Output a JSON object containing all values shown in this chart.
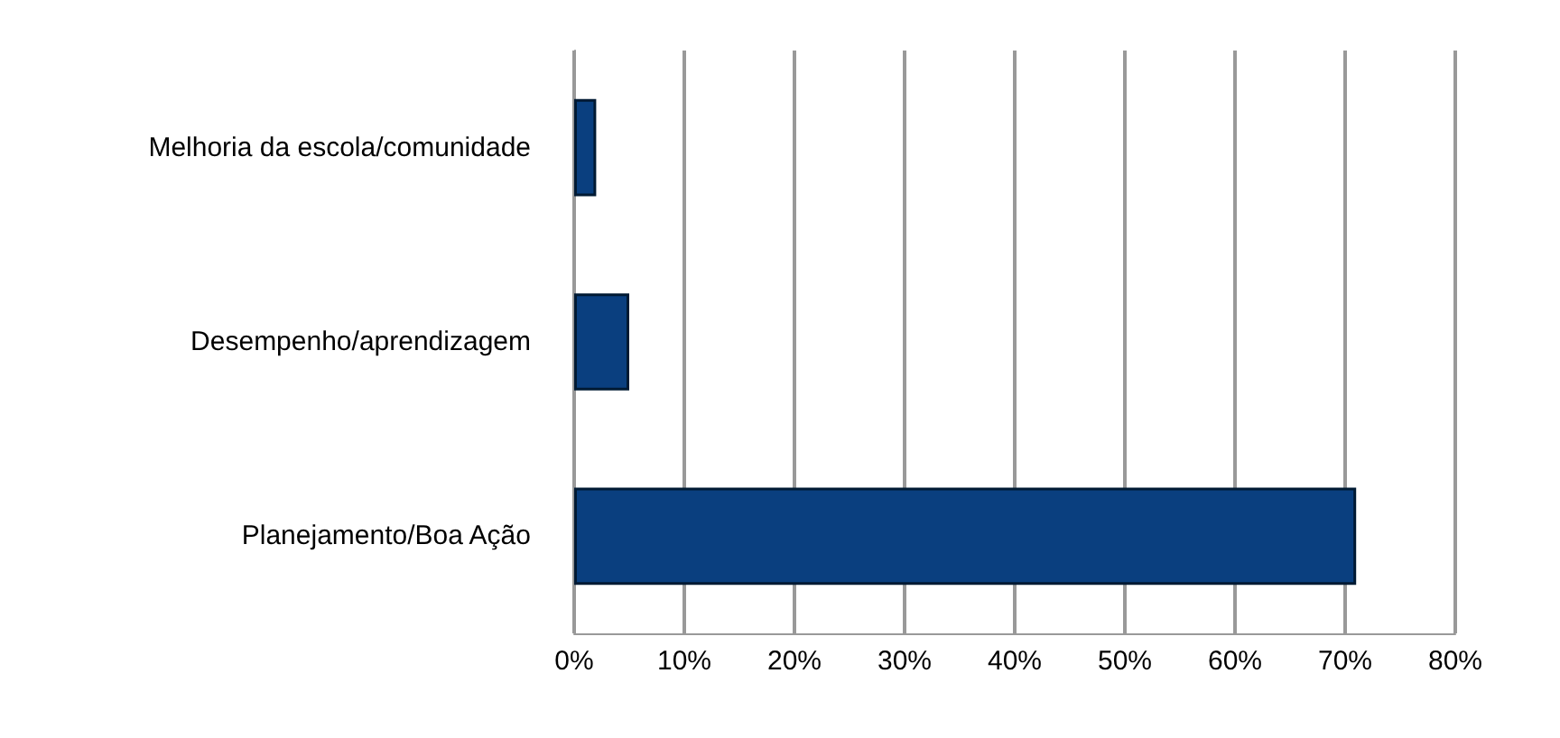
{
  "chart_data": {
    "type": "bar",
    "orientation": "horizontal",
    "categories": [
      "Melhoria da escola/comunidade",
      "Desempenho/aprendizagem",
      "Planejamento/Boa Ação"
    ],
    "values": [
      2,
      5,
      71
    ],
    "color": "#0a3f7f",
    "xlim": [
      0,
      80
    ],
    "xticks": [
      {
        "value": 0,
        "label": "0%"
      },
      {
        "value": 10,
        "label": "10%"
      },
      {
        "value": 20,
        "label": "20%"
      },
      {
        "value": 30,
        "label": "30%"
      },
      {
        "value": 40,
        "label": "40%"
      },
      {
        "value": 50,
        "label": "50%"
      },
      {
        "value": 60,
        "label": "60%"
      },
      {
        "value": 70,
        "label": "70%"
      },
      {
        "value": 80,
        "label": "80%"
      }
    ],
    "grid": "x"
  }
}
